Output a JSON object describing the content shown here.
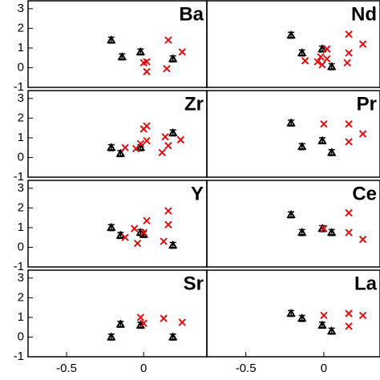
{
  "chart_data": [
    {
      "type": "scatter",
      "title": "Ba",
      "xlim": [
        -0.75,
        0.41
      ],
      "ylim": [
        -1,
        3.4
      ],
      "yticks": [
        -1,
        0,
        1,
        2,
        3
      ],
      "series": [
        {
          "color": "#000000",
          "marker": "triangle",
          "x": [
            -0.21,
            -0.14,
            -0.02,
            0.19
          ],
          "values": [
            1.4,
            0.55,
            0.8,
            0.45
          ],
          "errors": [
            0.15,
            0.15,
            0.15,
            0.15
          ]
        },
        {
          "color": "#dd1111",
          "marker": "cross",
          "x": [
            0,
            0.02,
            0.02,
            0.15,
            0.16,
            0.25
          ],
          "values": [
            0.25,
            0.3,
            -0.2,
            -0.05,
            1.4,
            0.8
          ]
        }
      ]
    },
    {
      "type": "scatter",
      "title": "Nd",
      "xlim": [
        -0.75,
        0.36
      ],
      "ylim": [
        -1,
        3.4
      ],
      "series": [
        {
          "color": "#000000",
          "marker": "triangle",
          "x": [
            -0.21,
            -0.14,
            -0.01,
            0.05
          ],
          "values": [
            1.65,
            0.75,
            0.95,
            0.05
          ],
          "errors": [
            0.15,
            0.15,
            0.15,
            0.15
          ]
        },
        {
          "color": "#dd1111",
          "marker": "cross",
          "x": [
            -0.12,
            -0.04,
            -0.02,
            -0.01,
            0.02,
            0.02,
            0.15,
            0.16,
            0.16,
            0.25
          ],
          "values": [
            0.35,
            0.3,
            0.55,
            0.15,
            0.45,
            0.95,
            0.25,
            1.7,
            0.75,
            1.2
          ]
        }
      ]
    },
    {
      "type": "scatter",
      "title": "Zr",
      "xlim": [
        -0.75,
        0.41
      ],
      "ylim": [
        -1,
        3.4
      ],
      "yticks": [
        -1,
        0,
        1,
        2,
        3
      ],
      "series": [
        {
          "color": "#000000",
          "marker": "triangle",
          "x": [
            -0.21,
            -0.15,
            -0.02,
            0.19
          ],
          "values": [
            0.5,
            0.2,
            0.5,
            1.25
          ],
          "errors": [
            0.15,
            0.15,
            0.15,
            0.15
          ]
        },
        {
          "color": "#dd1111",
          "marker": "cross",
          "x": [
            -0.12,
            -0.05,
            -0.02,
            0,
            0.02,
            0.02,
            0.12,
            0.14,
            0.16,
            0.24
          ],
          "values": [
            0.5,
            0.45,
            0.7,
            1.45,
            1.6,
            0.85,
            0.25,
            1.05,
            0.6,
            0.9
          ]
        }
      ]
    },
    {
      "type": "scatter",
      "title": "Pr",
      "xlim": [
        -0.75,
        0.36
      ],
      "ylim": [
        -1,
        3.4
      ],
      "series": [
        {
          "color": "#000000",
          "marker": "triangle",
          "x": [
            -0.21,
            -0.14,
            -0.01,
            0.05
          ],
          "values": [
            1.75,
            0.55,
            0.85,
            0.25
          ],
          "errors": [
            0.15,
            0.15,
            0.15,
            0.15
          ]
        },
        {
          "color": "#dd1111",
          "marker": "cross",
          "x": [
            0,
            0.16,
            0.16,
            0.25
          ],
          "values": [
            1.7,
            1.7,
            0.8,
            1.2
          ]
        }
      ]
    },
    {
      "type": "scatter",
      "title": "Y",
      "xlim": [
        -0.75,
        0.41
      ],
      "ylim": [
        -1,
        3.4
      ],
      "yticks": [
        -1,
        0,
        1,
        2,
        3
      ],
      "series": [
        {
          "color": "#000000",
          "marker": "triangle",
          "x": [
            -0.21,
            -0.15,
            -0.02,
            0,
            0.19
          ],
          "values": [
            1.0,
            0.6,
            0.75,
            0.65,
            0.1
          ],
          "errors": [
            0.15,
            0.15,
            0.15,
            0.15,
            0.15
          ]
        },
        {
          "color": "#dd1111",
          "marker": "cross",
          "x": [
            -0.12,
            -0.06,
            -0.04,
            0,
            0.02,
            0.13,
            0.16,
            0.16
          ],
          "values": [
            0.5,
            0.95,
            0.2,
            0.75,
            1.35,
            0.3,
            1.85,
            1.15
          ]
        }
      ]
    },
    {
      "type": "scatter",
      "title": "Ce",
      "xlim": [
        -0.75,
        0.36
      ],
      "ylim": [
        -1,
        3.4
      ],
      "series": [
        {
          "color": "#000000",
          "marker": "triangle",
          "x": [
            -0.21,
            -0.14,
            -0.01,
            0.05
          ],
          "values": [
            1.65,
            0.75,
            0.95,
            0.75
          ],
          "errors": [
            0.15,
            0.15,
            0.15,
            0.15
          ]
        },
        {
          "color": "#dd1111",
          "marker": "cross",
          "x": [
            0,
            0.16,
            0.16,
            0.25
          ],
          "values": [
            0.95,
            1.75,
            0.75,
            0.4
          ]
        }
      ]
    },
    {
      "type": "scatter",
      "title": "Sr",
      "xlim": [
        -0.75,
        0.41
      ],
      "ylim": [
        -1,
        3.4
      ],
      "yticks": [
        -1,
        0,
        1,
        2,
        3
      ],
      "xticks": [
        -0.5,
        0
      ],
      "series": [
        {
          "color": "#000000",
          "marker": "triangle",
          "x": [
            -0.21,
            -0.15,
            -0.02,
            0.19
          ],
          "values": [
            0,
            0.65,
            0.6,
            0
          ],
          "errors": [
            0.15,
            0.15,
            0.15,
            0.15
          ]
        },
        {
          "color": "#dd1111",
          "marker": "cross",
          "x": [
            -0.02,
            0,
            0.13,
            0.25
          ],
          "values": [
            1.0,
            0.7,
            0.95,
            0.75
          ]
        }
      ]
    },
    {
      "type": "scatter",
      "title": "La",
      "xlim": [
        -0.75,
        0.36
      ],
      "ylim": [
        -1,
        3.4
      ],
      "xticks": [
        -0.5,
        0
      ],
      "series": [
        {
          "color": "#000000",
          "marker": "triangle",
          "x": [
            -0.21,
            -0.14,
            -0.01,
            0.05
          ],
          "values": [
            1.2,
            0.95,
            0.6,
            0.3
          ],
          "errors": [
            0.15,
            0.15,
            0.15,
            0.15
          ]
        },
        {
          "color": "#dd1111",
          "marker": "cross",
          "x": [
            0,
            0.16,
            0.16,
            0.25
          ],
          "values": [
            1.1,
            1.2,
            0.55,
            1.1
          ]
        }
      ]
    }
  ]
}
